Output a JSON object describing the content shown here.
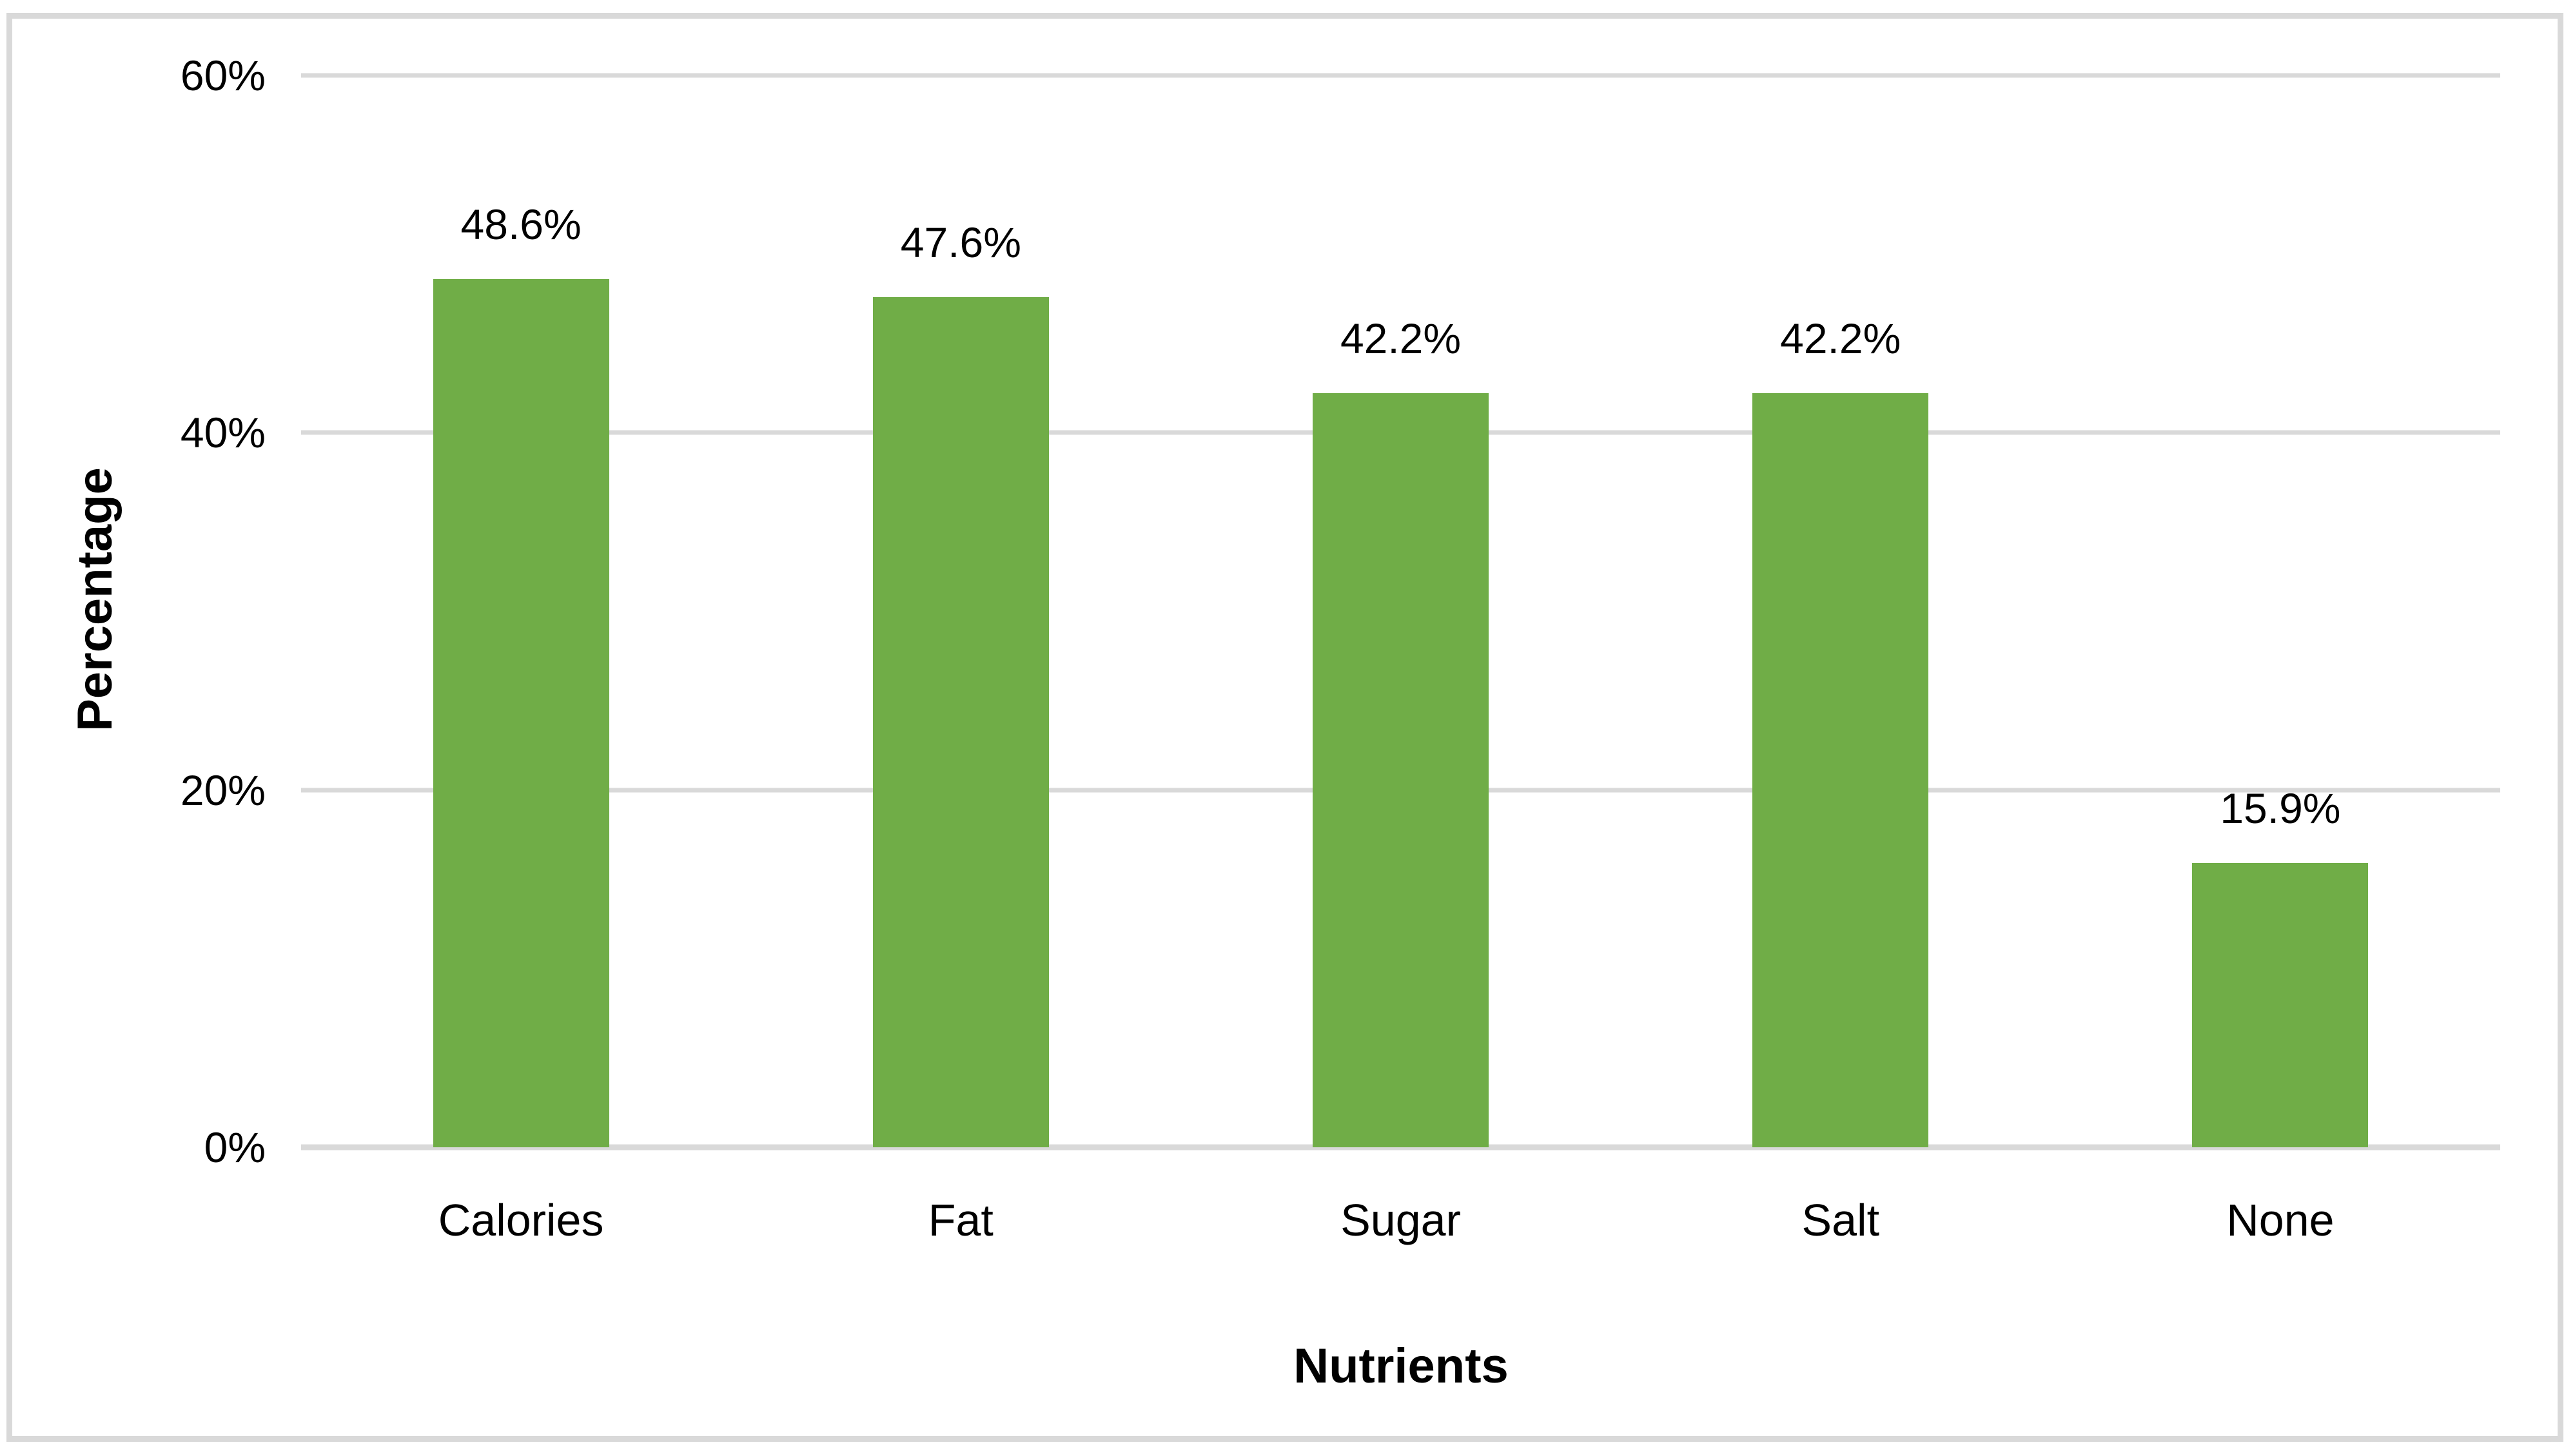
{
  "chart_data": {
    "type": "bar",
    "categories": [
      "Calories",
      "Fat",
      "Sugar",
      "Salt",
      "None"
    ],
    "values": [
      48.6,
      47.6,
      42.2,
      42.2,
      15.9
    ],
    "data_labels": [
      "48.6%",
      "47.6%",
      "42.2%",
      "42.2%",
      "15.9%"
    ],
    "title": "",
    "xlabel": "Nutrients",
    "ylabel": "Percentage",
    "ylim": [
      0,
      60
    ],
    "yticks": [
      {
        "value": 0,
        "label": "0%"
      },
      {
        "value": 20,
        "label": "20%"
      },
      {
        "value": 40,
        "label": "40%"
      },
      {
        "value": 60,
        "label": "60%"
      }
    ],
    "grid": true,
    "legend": "none",
    "colors": {
      "bar": "#70AD47",
      "gridline": "#D9D9D9",
      "axis_line": "#D9D9D9",
      "frame_border": "#D9D9D9",
      "text": "#000000",
      "background": "#FFFFFF"
    }
  }
}
